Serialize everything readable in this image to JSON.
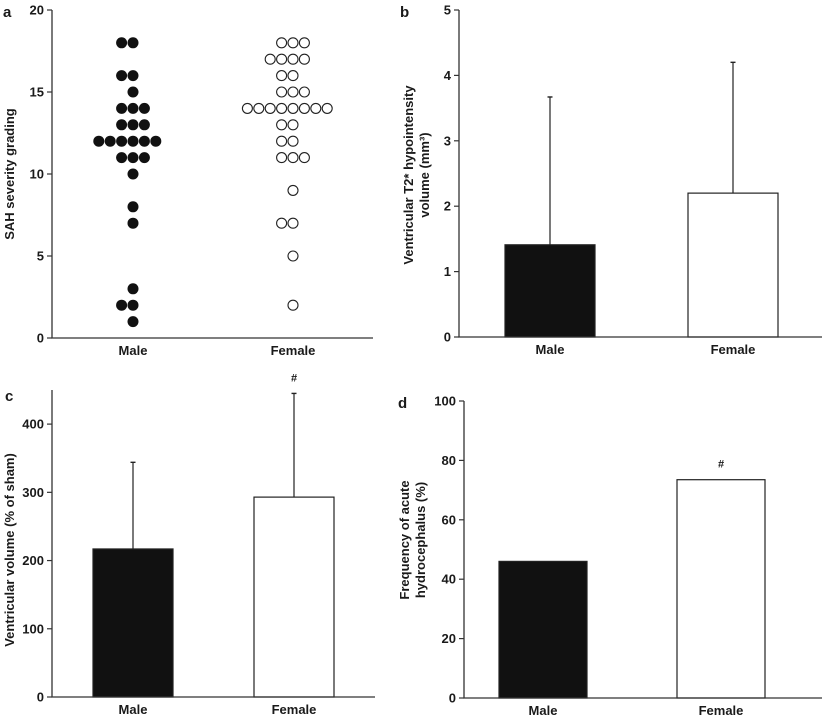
{
  "chart_data": [
    {
      "panel": "a",
      "type": "scatter",
      "subtype": "dot-plot",
      "ylabel": "SAH severity grading",
      "categories": [
        "Male",
        "Female"
      ],
      "ylim": [
        0,
        20
      ],
      "yticks": [
        0,
        5,
        10,
        15,
        20
      ],
      "series": [
        {
          "name": "Male",
          "marker": "filled",
          "values": [
            18,
            18,
            16,
            16,
            15,
            14,
            14,
            14,
            13,
            13,
            13,
            12,
            12,
            12,
            12,
            12,
            12,
            11,
            11,
            11,
            10,
            8,
            7,
            3,
            2,
            2,
            1
          ]
        },
        {
          "name": "Female",
          "marker": "open",
          "values": [
            18,
            18,
            18,
            17,
            17,
            17,
            17,
            16,
            16,
            15,
            15,
            15,
            14,
            14,
            14,
            14,
            14,
            14,
            14,
            14,
            13,
            13,
            12,
            12,
            11,
            11,
            11,
            9,
            7,
            7,
            5,
            2
          ]
        }
      ]
    },
    {
      "panel": "b",
      "type": "bar",
      "ylabel_lines": [
        "Ventricular T2* hypointensity",
        "volume (mm³)"
      ],
      "categories": [
        "Male",
        "Female"
      ],
      "ylim": [
        0,
        5
      ],
      "yticks": [
        0,
        1,
        2,
        3,
        4,
        5
      ],
      "values": [
        1.41,
        2.2
      ],
      "error_upper": [
        3.67,
        4.2
      ],
      "fills": [
        "#111111",
        "#ffffff"
      ],
      "annotations": [
        "",
        ""
      ]
    },
    {
      "panel": "c",
      "type": "bar",
      "ylabel_lines": [
        "Ventricular volume (% of sham)"
      ],
      "categories": [
        "Male",
        "Female"
      ],
      "ylim": [
        0,
        450
      ],
      "yticks": [
        0,
        100,
        200,
        300,
        400
      ],
      "values": [
        217,
        293
      ],
      "error_upper": [
        344,
        445
      ],
      "fills": [
        "#111111",
        "#ffffff"
      ],
      "annotations": [
        "",
        "#"
      ]
    },
    {
      "panel": "d",
      "type": "bar",
      "ylabel_lines": [
        "Frequency of acute",
        "hydrocephalus (%)"
      ],
      "categories": [
        "Male",
        "Female"
      ],
      "ylim": [
        0,
        100
      ],
      "yticks": [
        0,
        20,
        40,
        60,
        80,
        100
      ],
      "values": [
        46,
        73.5
      ],
      "error_upper": [
        null,
        null
      ],
      "fills": [
        "#111111",
        "#ffffff"
      ],
      "annotations": [
        "",
        "#"
      ]
    }
  ]
}
